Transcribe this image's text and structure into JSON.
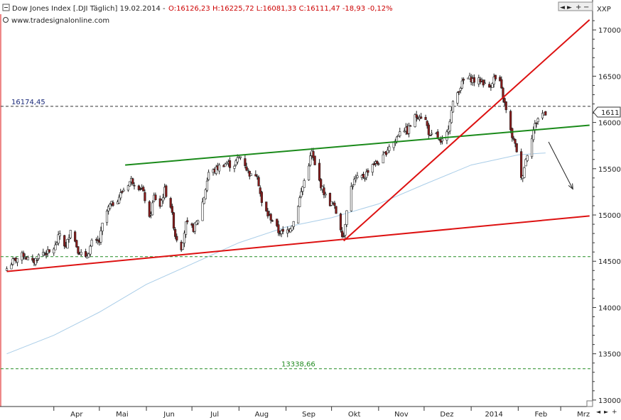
{
  "header": {
    "title": "Dow Jones Index [.DJI  Täglich] 19.02.2014 - ",
    "ohlc": "O:16126,23 H:16225,72 L:16081,33 C:16111,47 -18,93 -0,12%",
    "website": "www.tradesignalonline.com",
    "scale_label": "XXP",
    "nav_left": "◄",
    "nav_right": "►",
    "nav_plus": "+",
    "nav_minus": "−"
  },
  "chart_data": {
    "type": "candlestick",
    "title": "Dow Jones Index [.DJI  Täglich] 19.02.2014",
    "y_ticks": [
      13000,
      13500,
      14000,
      14500,
      15000,
      15500,
      16000,
      16500,
      17000
    ],
    "y_tick_labels": [
      "13000,",
      "13500,",
      "14000,",
      "14500,",
      "15000,",
      "15500,",
      "16000,",
      "16500,",
      "17000,"
    ],
    "ylim": [
      12930,
      17170
    ],
    "x_tick_labels": [
      "Apr",
      "Mai",
      "Jun",
      "Jul",
      "Aug",
      "Sep",
      "Okt",
      "Nov",
      "Dez",
      "2014",
      "Feb",
      "Mrz"
    ],
    "x_tick_dates": [
      "2013-04-01",
      "2013-05-01",
      "2013-06-01",
      "2013-07-01",
      "2013-08-01",
      "2013-09-01",
      "2013-10-01",
      "2013-11-01",
      "2013-12-01",
      "2014-01-01",
      "2014-02-01",
      "2014-03-01"
    ],
    "last_price_label": "1611",
    "horizontal_levels": [
      {
        "value": 16174.45,
        "label": "16174,45",
        "color": "#333333",
        "style": "dashed"
      },
      {
        "value": 14550,
        "label": "",
        "color": "#228b22",
        "style": "dashed"
      },
      {
        "value": 13338.66,
        "label": "13338,66",
        "color": "#228b22",
        "style": "dashed"
      }
    ],
    "trendlines": [
      {
        "name": "upper channel",
        "color": "#1a8a1a",
        "points": [
          [
            "2013-05-18",
            15540
          ],
          [
            "2014-03-20",
            15970
          ]
        ]
      },
      {
        "name": "lower channel",
        "color": "#dd1111",
        "points": [
          [
            "2013-03-01",
            14390
          ],
          [
            "2014-03-20",
            14990
          ]
        ]
      },
      {
        "name": "rising trend",
        "color": "#dd1111",
        "points": [
          [
            "2013-10-09",
            14720
          ],
          [
            "2014-03-20",
            17110
          ]
        ]
      }
    ],
    "arrow": {
      "from": [
        "2014-02-21",
        15790
      ],
      "to": [
        "2014-03-09",
        15280
      ],
      "color": "#222222"
    },
    "moving_average": {
      "color": "#a9cde8",
      "points": [
        [
          "2013-03-01",
          13500
        ],
        [
          "2013-04-01",
          13700
        ],
        [
          "2013-05-01",
          13950
        ],
        [
          "2013-06-01",
          14250
        ],
        [
          "2013-07-01",
          14470
        ],
        [
          "2013-08-01",
          14700
        ],
        [
          "2013-09-01",
          14870
        ],
        [
          "2013-10-01",
          14970
        ],
        [
          "2013-11-01",
          15120
        ],
        [
          "2013-12-01",
          15330
        ],
        [
          "2014-01-01",
          15540
        ],
        [
          "2014-02-01",
          15650
        ],
        [
          "2014-02-19",
          15670
        ]
      ]
    },
    "close_path": [
      [
        "2013-03-01",
        14420
      ],
      [
        "2013-03-05",
        14500
      ],
      [
        "2013-03-12",
        14570
      ],
      [
        "2013-03-18",
        14480
      ],
      [
        "2013-03-24",
        14600
      ],
      [
        "2013-03-29",
        14590
      ],
      [
        "2013-04-02",
        14660
      ],
      [
        "2013-04-05",
        14800
      ],
      [
        "2013-04-09",
        14640
      ],
      [
        "2013-04-12",
        14860
      ],
      [
        "2013-04-17",
        14620
      ],
      [
        "2013-04-22",
        14520
      ],
      [
        "2013-04-26",
        14700
      ],
      [
        "2013-05-01",
        14710
      ],
      [
        "2013-05-04",
        14980
      ],
      [
        "2013-05-08",
        15100
      ],
      [
        "2013-05-12",
        15150
      ],
      [
        "2013-05-16",
        15250
      ],
      [
        "2013-05-18",
        15300
      ],
      [
        "2013-05-22",
        15380
      ],
      [
        "2013-05-25",
        15330
      ],
      [
        "2013-05-29",
        15280
      ],
      [
        "2013-06-01",
        15120
      ],
      [
        "2013-06-03",
        14950
      ],
      [
        "2013-06-06",
        15200
      ],
      [
        "2013-06-10",
        15100
      ],
      [
        "2013-06-13",
        15270
      ],
      [
        "2013-06-17",
        15100
      ],
      [
        "2013-06-20",
        14780
      ],
      [
        "2013-06-24",
        14650
      ],
      [
        "2013-06-27",
        14900
      ],
      [
        "2013-07-02",
        14850
      ],
      [
        "2013-07-05",
        14950
      ],
      [
        "2013-07-09",
        15200
      ],
      [
        "2013-07-12",
        15460
      ],
      [
        "2013-07-16",
        15480
      ],
      [
        "2013-07-20",
        15540
      ],
      [
        "2013-07-24",
        15560
      ],
      [
        "2013-07-28",
        15520
      ],
      [
        "2013-07-31",
        15600
      ],
      [
        "2013-08-03",
        15650
      ],
      [
        "2013-08-06",
        15500
      ],
      [
        "2013-08-09",
        15420
      ],
      [
        "2013-08-13",
        15450
      ],
      [
        "2013-08-16",
        15120
      ],
      [
        "2013-08-20",
        15000
      ],
      [
        "2013-08-23",
        14950
      ],
      [
        "2013-08-27",
        14820
      ],
      [
        "2013-08-31",
        14800
      ],
      [
        "2013-09-03",
        14850
      ],
      [
        "2013-09-06",
        14930
      ],
      [
        "2013-09-10",
        15180
      ],
      [
        "2013-09-13",
        15370
      ],
      [
        "2013-09-18",
        15680
      ],
      [
        "2013-09-21",
        15450
      ],
      [
        "2013-09-25",
        15280
      ],
      [
        "2013-09-29",
        15130
      ],
      [
        "2013-10-02",
        15120
      ],
      [
        "2013-10-05",
        14980
      ],
      [
        "2013-10-08",
        14800
      ],
      [
        "2013-10-09",
        14770
      ],
      [
        "2013-10-12",
        15230
      ],
      [
        "2013-10-16",
        15370
      ],
      [
        "2013-10-19",
        15400
      ],
      [
        "2013-10-23",
        15420
      ],
      [
        "2013-10-27",
        15550
      ],
      [
        "2013-10-31",
        15560
      ],
      [
        "2013-11-04",
        15620
      ],
      [
        "2013-11-08",
        15750
      ],
      [
        "2013-11-12",
        15800
      ],
      [
        "2013-11-16",
        15960
      ],
      [
        "2013-11-20",
        15900
      ],
      [
        "2013-11-24",
        16050
      ],
      [
        "2013-11-28",
        16080
      ],
      [
        "2013-12-02",
        16020
      ],
      [
        "2013-12-05",
        15830
      ],
      [
        "2013-12-08",
        15900
      ],
      [
        "2013-12-12",
        15760
      ],
      [
        "2013-12-16",
        15880
      ],
      [
        "2013-12-20",
        16200
      ],
      [
        "2013-12-24",
        16360
      ],
      [
        "2013-12-28",
        16480
      ],
      [
        "2014-01-01",
        16470
      ],
      [
        "2014-01-04",
        16440
      ],
      [
        "2014-01-08",
        16460
      ],
      [
        "2014-01-12",
        16350
      ],
      [
        "2014-01-16",
        16480
      ],
      [
        "2014-01-20",
        16420
      ],
      [
        "2014-01-23",
        16200
      ],
      [
        "2014-01-27",
        15900
      ],
      [
        "2014-01-31",
        15700
      ],
      [
        "2014-02-03",
        15380
      ],
      [
        "2014-02-06",
        15600
      ],
      [
        "2014-02-09",
        15800
      ],
      [
        "2014-02-12",
        15970
      ],
      [
        "2014-02-15",
        16080
      ],
      [
        "2014-02-19",
        16110
      ]
    ]
  },
  "colors": {
    "up_candle": "#ffffff",
    "down_candle": "#8b1a1a",
    "candle_outline": "#222222",
    "axis": "#333333",
    "plot_border": "#dd1111",
    "price_label_bg": "#ffffff"
  }
}
